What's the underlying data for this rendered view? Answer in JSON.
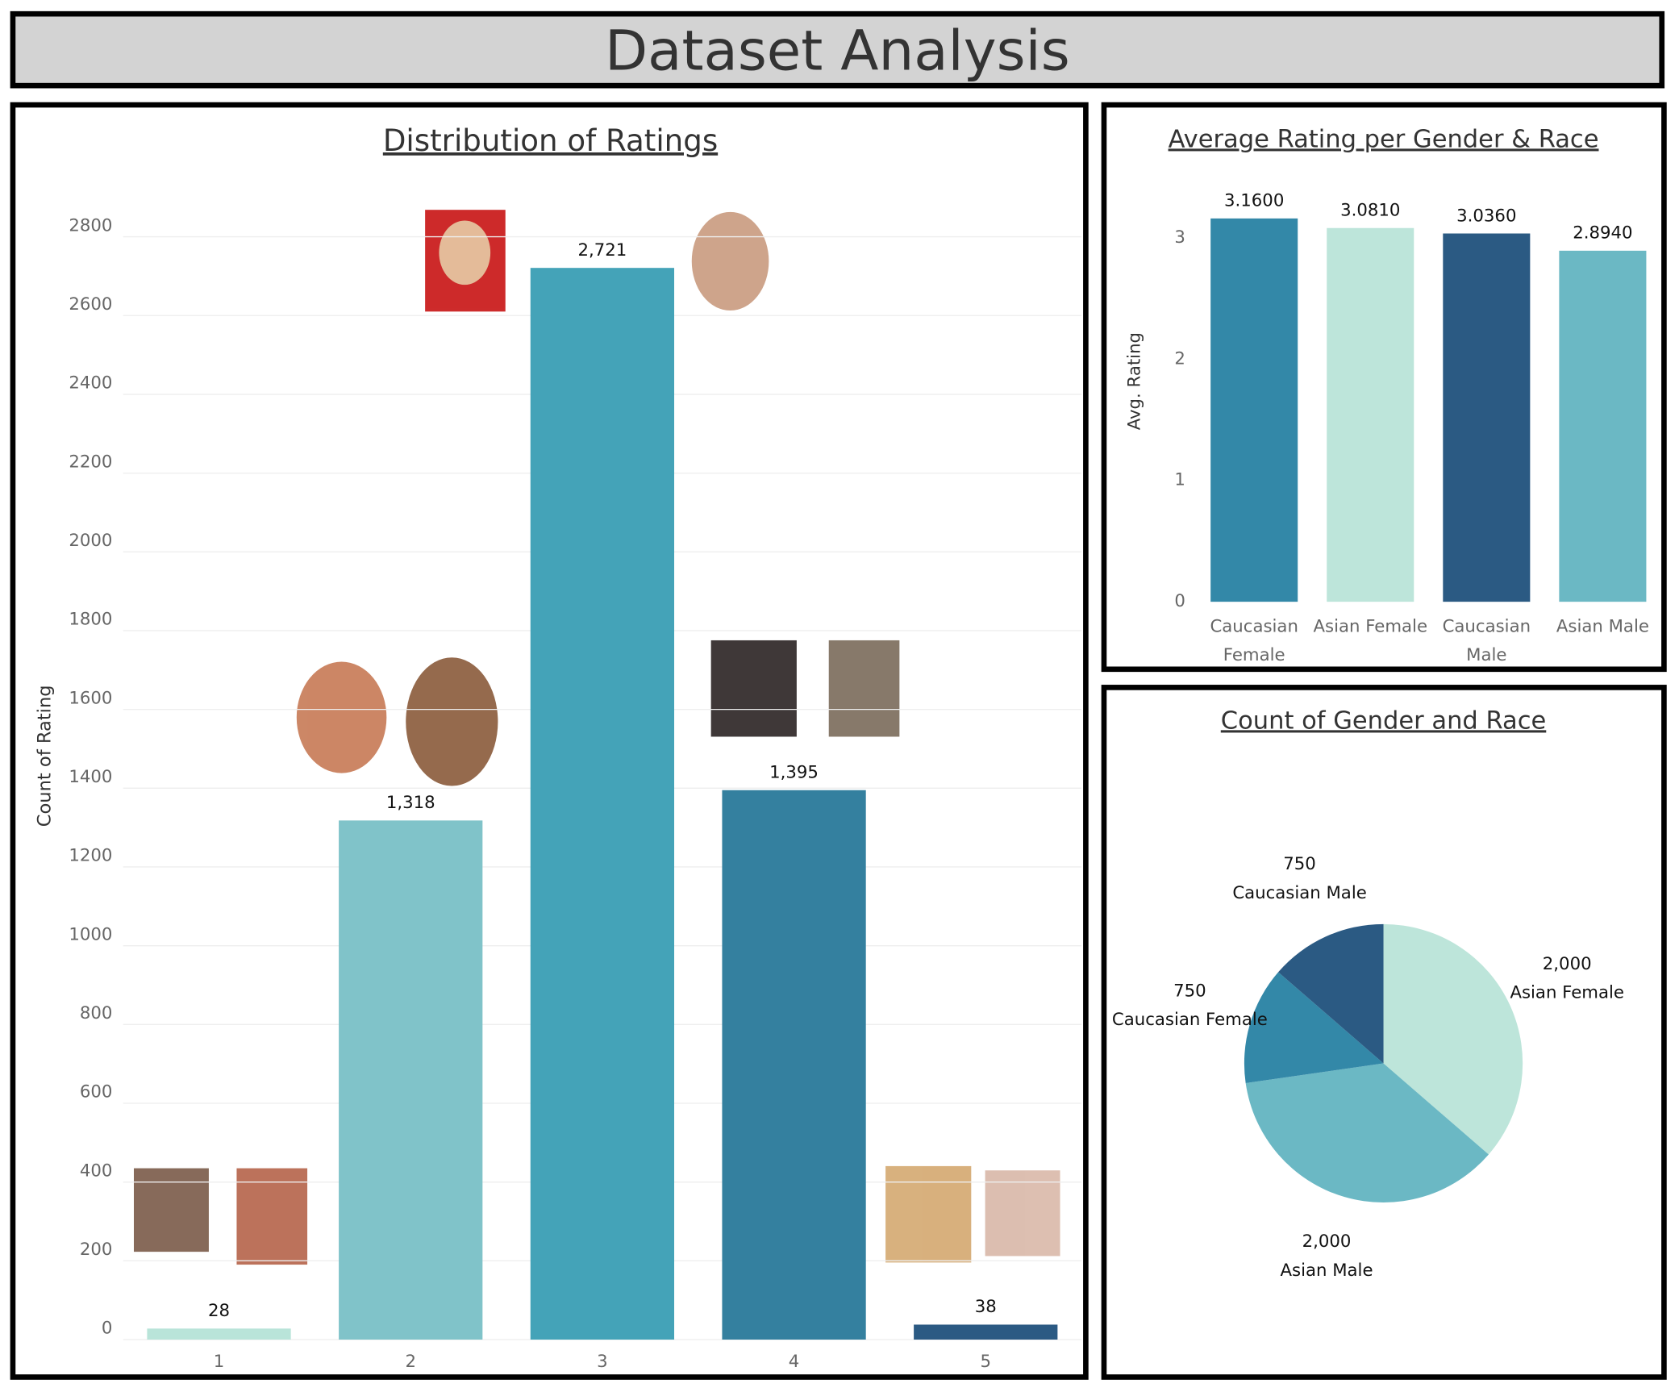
{
  "title": "Dataset Analysis",
  "chart_data": [
    {
      "type": "bar",
      "title": "Distribution of Ratings",
      "y_label": "Count of Rating",
      "categories": [
        "1",
        "2",
        "3",
        "4",
        "5"
      ],
      "values": [
        28,
        1318,
        2721,
        1395,
        38
      ],
      "value_labels": [
        "28",
        "1,318",
        "2,721",
        "1,395",
        "38"
      ],
      "colors": [
        "#b9e4d9",
        "#80c3c9",
        "#44a3b8",
        "#34809f",
        "#2b5a83"
      ],
      "ylim": [
        0,
        2950
      ],
      "yticks": [
        0,
        200,
        400,
        600,
        800,
        1000,
        1200,
        1400,
        1600,
        1800,
        2000,
        2200,
        2400,
        2600,
        2800
      ],
      "grid": true
    },
    {
      "type": "bar",
      "title": "Average Rating per Gender & Race",
      "y_label": "Avg. Rating",
      "categories": [
        "Caucasian Female",
        "Asian Female",
        "Caucasian Male",
        "Asian Male"
      ],
      "values": [
        3.16,
        3.081,
        3.036,
        2.894
      ],
      "value_labels": [
        "3.1600",
        "3.0810",
        "3.0360",
        "2.8940"
      ],
      "colors": [
        "#3388a8",
        "#bde5da",
        "#2b5a83",
        "#6bb8c4"
      ],
      "ylim": [
        0,
        3.54
      ],
      "yticks": [
        0,
        1,
        2,
        3
      ],
      "grid": false
    },
    {
      "type": "pie",
      "title": "Count of Gender and Race",
      "categories": [
        "Asian Female",
        "Asian Male",
        "Caucasian Female",
        "Caucasian Male"
      ],
      "values": [
        2000,
        2000,
        750,
        750
      ],
      "value_labels": [
        "2,000",
        "2,000",
        "750",
        "750"
      ],
      "colors": [
        "#bde5da",
        "#6bb8c4",
        "#3388a8",
        "#2b5a83"
      ]
    }
  ]
}
